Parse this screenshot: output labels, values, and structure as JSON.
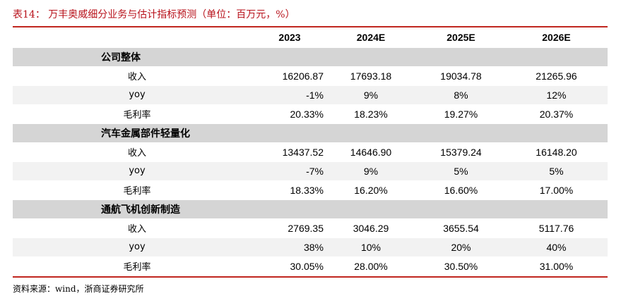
{
  "title": "表14：  万丰奥威细分业务与估计指标预测（单位：百万元，%）",
  "columns": [
    "",
    "2023",
    "2024E",
    "2025E",
    "2026E"
  ],
  "sections": [
    {
      "name": "公司整体",
      "rows": [
        {
          "label": "收入",
          "values": [
            "16206.87",
            "17693.18",
            "19034.78",
            "21265.96"
          ]
        },
        {
          "label": "yoy",
          "values": [
            "-1%",
            "9%",
            "8%",
            "12%"
          ]
        },
        {
          "label": "毛利率",
          "values": [
            "20.33%",
            "18.23%",
            "19.27%",
            "20.37%"
          ]
        }
      ]
    },
    {
      "name": "汽车金属部件轻量化",
      "rows": [
        {
          "label": "收入",
          "values": [
            "13437.52",
            "14646.90",
            "15379.24",
            "16148.20"
          ]
        },
        {
          "label": "yoy",
          "values": [
            "-7%",
            "9%",
            "5%",
            "5%"
          ]
        },
        {
          "label": "毛利率",
          "values": [
            "18.33%",
            "16.20%",
            "16.60%",
            "17.00%"
          ]
        }
      ]
    },
    {
      "name": "通航飞机创新制造",
      "rows": [
        {
          "label": "收入",
          "values": [
            "2769.35",
            "3046.29",
            "3655.54",
            "5117.76"
          ]
        },
        {
          "label": "yoy",
          "values": [
            "38%",
            "10%",
            "20%",
            "40%"
          ]
        },
        {
          "label": "毛利率",
          "values": [
            "30.05%",
            "28.00%",
            "30.50%",
            "31.00%"
          ]
        }
      ]
    }
  ],
  "source": "资料来源：wind，浙商证券研究所",
  "colors": {
    "title": "#b8121b",
    "rule": "#c0261f",
    "section_bg": "#d5d5d5",
    "stripe_bg": "#f2f2f2"
  }
}
